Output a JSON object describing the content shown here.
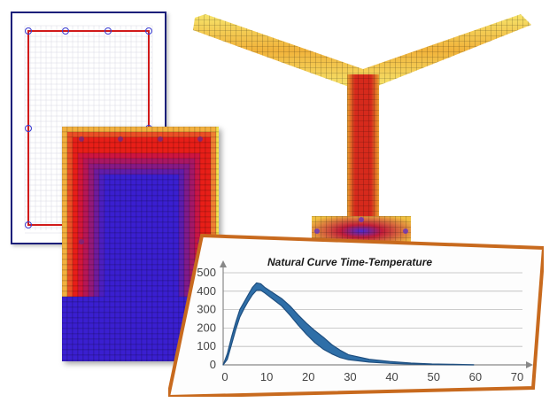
{
  "colors": {
    "mesh_border": "#1c1f7a",
    "mesh_inner": "#d11a1a",
    "heat_hot": "#e8121a",
    "heat_warm": "#f5e04a",
    "heat_cool": "#3a1fd0",
    "card_border": "#c86a1e",
    "curve": "#2f6fa8"
  },
  "icons": [
    "grid-mesh",
    "rebar-node"
  ],
  "chart_data": {
    "type": "area",
    "title": "Natural Curve Time-Temperature",
    "xlabel": "",
    "ylabel": "",
    "xlim": [
      0,
      70
    ],
    "ylim": [
      0,
      500
    ],
    "x_ticks": [
      "0",
      "10",
      "20",
      "30",
      "40",
      "50",
      "60",
      "70"
    ],
    "y_ticks": [
      "0",
      "100",
      "200",
      "300",
      "400",
      "500"
    ],
    "grid": "horizontal",
    "series": [
      {
        "upper": [
          [
            0,
            0
          ],
          [
            1,
            60
          ],
          [
            2,
            150
          ],
          [
            3,
            230
          ],
          [
            4,
            300
          ],
          [
            5,
            340
          ],
          [
            6,
            380
          ],
          [
            7,
            420
          ],
          [
            8,
            445
          ],
          [
            9,
            440
          ],
          [
            10,
            420
          ],
          [
            12,
            390
          ],
          [
            14,
            360
          ],
          [
            16,
            320
          ],
          [
            18,
            270
          ],
          [
            20,
            225
          ],
          [
            22,
            185
          ],
          [
            24,
            150
          ],
          [
            26,
            110
          ],
          [
            28,
            80
          ],
          [
            30,
            55
          ],
          [
            35,
            30
          ],
          [
            40,
            18
          ],
          [
            45,
            10
          ],
          [
            50,
            5
          ],
          [
            55,
            3
          ],
          [
            60,
            1
          ]
        ],
        "lower": [
          [
            0,
            0
          ],
          [
            1,
            30
          ],
          [
            2,
            110
          ],
          [
            3,
            190
          ],
          [
            4,
            260
          ],
          [
            5,
            305
          ],
          [
            6,
            345
          ],
          [
            7,
            380
          ],
          [
            8,
            405
          ],
          [
            9,
            405
          ],
          [
            10,
            390
          ],
          [
            12,
            355
          ],
          [
            14,
            320
          ],
          [
            16,
            270
          ],
          [
            18,
            215
          ],
          [
            20,
            165
          ],
          [
            22,
            120
          ],
          [
            24,
            85
          ],
          [
            26,
            60
          ],
          [
            28,
            40
          ],
          [
            30,
            28
          ],
          [
            35,
            15
          ],
          [
            40,
            8
          ],
          [
            45,
            4
          ],
          [
            50,
            2
          ],
          [
            55,
            1
          ],
          [
            60,
            0
          ]
        ]
      }
    ]
  }
}
